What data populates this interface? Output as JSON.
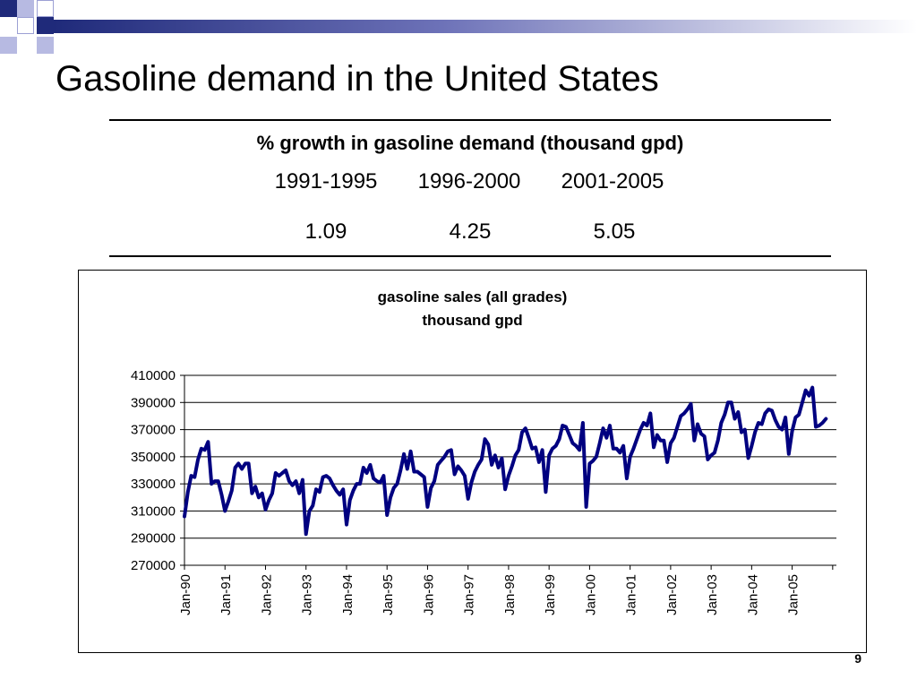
{
  "slide": {
    "title": "Gasoline demand in the United States",
    "page_number": "9"
  },
  "growth_table": {
    "header": "% growth in gasoline demand (thousand gpd)",
    "periods": [
      "1991-1995",
      "1996-2000",
      "2001-2005"
    ],
    "values": [
      "1.09",
      "4.25",
      "5.05"
    ]
  },
  "colors": {
    "series": "#000080",
    "deco_navy": "#1f2a7a",
    "deco_light": "#a9acd9"
  },
  "chart_data": {
    "type": "line",
    "title": "gasoline sales (all grades)",
    "subtitle": "thousand gpd",
    "xlabel": "",
    "ylabel": "",
    "ylim": [
      270000,
      410000
    ],
    "yticks": [
      270000,
      290000,
      310000,
      330000,
      350000,
      370000,
      390000,
      410000
    ],
    "xtick_labels": [
      "Jan-90",
      "Jan-91",
      "Jan-92",
      "Jan-93",
      "Jan-94",
      "Jan-95",
      "Jan-96",
      "Jan-97",
      "Jan-98",
      "Jan-99",
      "Jan-00",
      "Jan-01",
      "Jan-02",
      "Jan-03",
      "Jan-04",
      "Jan-05"
    ],
    "grid": "horizontal",
    "legend": "none",
    "x_start": "1990-01",
    "series": [
      {
        "values": [
          306000,
          324000,
          336000,
          335000,
          348000,
          356000,
          355000,
          361000,
          330000,
          332000,
          332000,
          322000,
          310000,
          317000,
          325000,
          342000,
          345000,
          341000,
          345000,
          345000,
          323000,
          328000,
          320000,
          323000,
          311000,
          318000,
          323000,
          338000,
          336000,
          338000,
          340000,
          332000,
          329000,
          332000,
          323000,
          333000,
          293000,
          310000,
          314000,
          326000,
          324000,
          335000,
          336000,
          334000,
          329000,
          325000,
          322000,
          326000,
          300000,
          318000,
          325000,
          330000,
          330000,
          342000,
          338000,
          344000,
          334000,
          332000,
          331000,
          336000,
          307000,
          320000,
          327000,
          330000,
          340000,
          352000,
          341000,
          354000,
          339000,
          339000,
          337000,
          335000,
          313000,
          327000,
          332000,
          344000,
          347000,
          350000,
          354000,
          355000,
          337000,
          343000,
          340000,
          336000,
          319000,
          331000,
          339000,
          344000,
          348000,
          363000,
          359000,
          344000,
          351000,
          342000,
          349000,
          326000,
          336000,
          343000,
          351000,
          355000,
          368000,
          371000,
          364000,
          356000,
          357000,
          346000,
          355000,
          324000,
          351000,
          356000,
          358000,
          363000,
          373000,
          372000,
          366000,
          360000,
          358000,
          355000,
          375000,
          313000,
          345000,
          347000,
          350000,
          360000,
          371000,
          364000,
          373000,
          356000,
          356000,
          353000,
          358000,
          334000,
          350000,
          356000,
          363000,
          370000,
          375000,
          373000,
          382000,
          357000,
          366000,
          362000,
          362000,
          346000,
          360000,
          364000,
          372000,
          380000,
          382000,
          385000,
          389000,
          362000,
          374000,
          367000,
          365000,
          348000,
          351000,
          353000,
          362000,
          375000,
          381000,
          390000,
          390000,
          378000,
          383000,
          368000,
          370000,
          349000,
          358000,
          368000,
          375000,
          374000,
          382000,
          385000,
          384000,
          377000,
          372000,
          370000,
          379000,
          352000,
          369000,
          379000,
          381000,
          390000,
          399000,
          395000,
          401000,
          372000,
          373000,
          375000,
          378000
        ]
      }
    ]
  }
}
